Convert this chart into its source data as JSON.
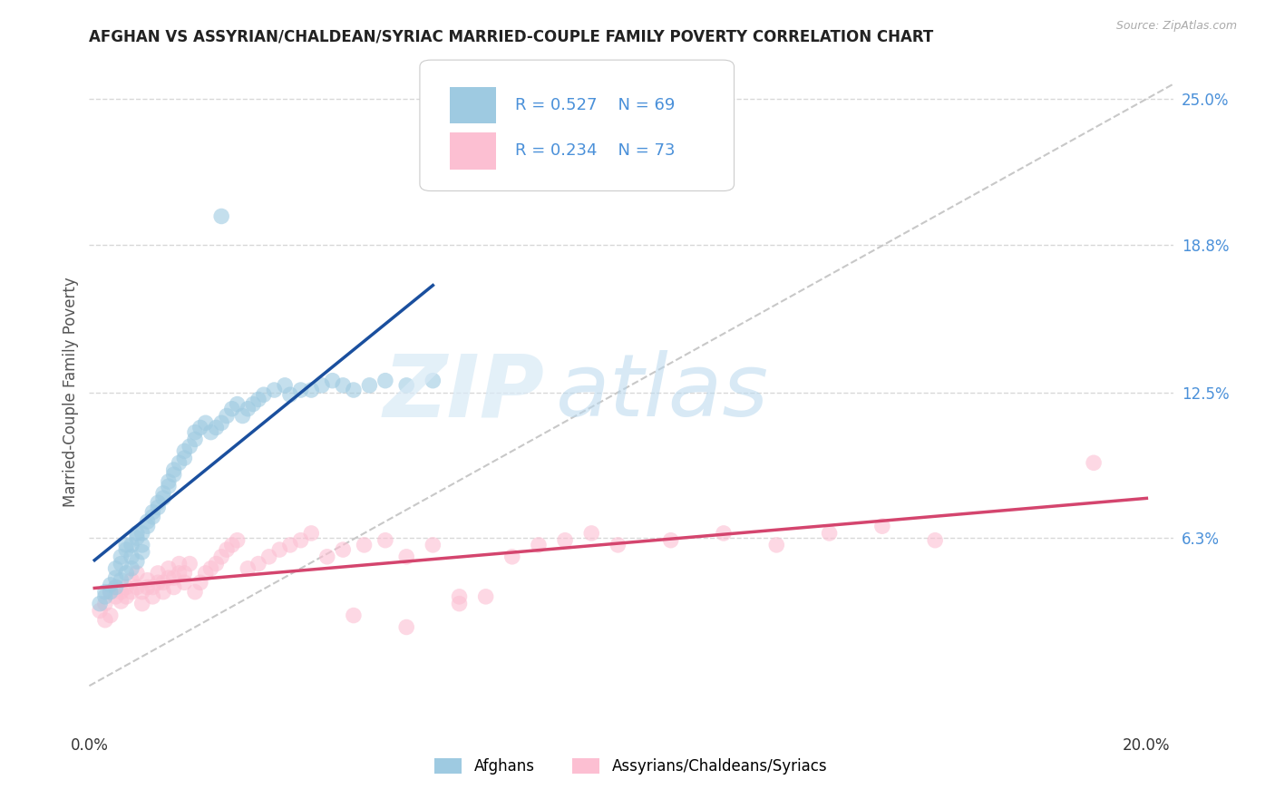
{
  "title": "AFGHAN VS ASSYRIAN/CHALDEAN/SYRIAC MARRIED-COUPLE FAMILY POVERTY CORRELATION CHART",
  "source": "Source: ZipAtlas.com",
  "ylabel": "Married-Couple Family Poverty",
  "xlim": [
    0.0,
    0.205
  ],
  "ylim": [
    -0.018,
    0.268
  ],
  "ytick_labels_right": [
    "6.3%",
    "12.5%",
    "18.8%",
    "25.0%"
  ],
  "ytick_values_right": [
    0.063,
    0.125,
    0.188,
    0.25
  ],
  "watermark_zip": "ZIP",
  "watermark_atlas": "atlas",
  "color_afghan": "#9ecae1",
  "color_assyrian": "#fcbfd2",
  "color_blue_line": "#1a4f9e",
  "color_pink_line": "#d4456e",
  "color_diag_line": "#c8c8c8",
  "color_right_labels": "#4a90d9",
  "background_color": "#ffffff",
  "grid_color": "#d8d8d8",
  "afghan_x": [
    0.003,
    0.004,
    0.005,
    0.005,
    0.006,
    0.006,
    0.007,
    0.007,
    0.008,
    0.008,
    0.009,
    0.009,
    0.01,
    0.01,
    0.011,
    0.011,
    0.012,
    0.012,
    0.013,
    0.013,
    0.014,
    0.014,
    0.015,
    0.015,
    0.016,
    0.016,
    0.017,
    0.018,
    0.018,
    0.019,
    0.02,
    0.02,
    0.021,
    0.022,
    0.023,
    0.024,
    0.025,
    0.026,
    0.027,
    0.028,
    0.029,
    0.03,
    0.031,
    0.032,
    0.033,
    0.035,
    0.037,
    0.038,
    0.04,
    0.042,
    0.044,
    0.046,
    0.048,
    0.05,
    0.053,
    0.056,
    0.06,
    0.065,
    0.025,
    0.002,
    0.003,
    0.004,
    0.005,
    0.006,
    0.007,
    0.008,
    0.009,
    0.01
  ],
  "afghan_y": [
    0.04,
    0.043,
    0.046,
    0.05,
    0.052,
    0.055,
    0.058,
    0.06,
    0.055,
    0.06,
    0.063,
    0.065,
    0.06,
    0.065,
    0.068,
    0.07,
    0.072,
    0.074,
    0.076,
    0.078,
    0.08,
    0.082,
    0.085,
    0.087,
    0.09,
    0.092,
    0.095,
    0.097,
    0.1,
    0.102,
    0.105,
    0.108,
    0.11,
    0.112,
    0.108,
    0.11,
    0.112,
    0.115,
    0.118,
    0.12,
    0.115,
    0.118,
    0.12,
    0.122,
    0.124,
    0.126,
    0.128,
    0.124,
    0.126,
    0.126,
    0.128,
    0.13,
    0.128,
    0.126,
    0.128,
    0.13,
    0.128,
    0.13,
    0.2,
    0.035,
    0.038,
    0.04,
    0.042,
    0.045,
    0.048,
    0.05,
    0.053,
    0.057
  ],
  "assyrian_x": [
    0.002,
    0.003,
    0.003,
    0.004,
    0.004,
    0.005,
    0.005,
    0.006,
    0.006,
    0.007,
    0.007,
    0.008,
    0.008,
    0.009,
    0.009,
    0.01,
    0.01,
    0.011,
    0.011,
    0.012,
    0.012,
    0.013,
    0.013,
    0.014,
    0.014,
    0.015,
    0.015,
    0.016,
    0.016,
    0.017,
    0.017,
    0.018,
    0.018,
    0.019,
    0.02,
    0.021,
    0.022,
    0.023,
    0.024,
    0.025,
    0.026,
    0.027,
    0.028,
    0.03,
    0.032,
    0.034,
    0.036,
    0.038,
    0.04,
    0.042,
    0.045,
    0.048,
    0.052,
    0.056,
    0.06,
    0.065,
    0.07,
    0.075,
    0.08,
    0.085,
    0.09,
    0.095,
    0.1,
    0.11,
    0.12,
    0.13,
    0.14,
    0.15,
    0.16,
    0.19,
    0.05,
    0.06,
    0.07
  ],
  "assyrian_y": [
    0.032,
    0.028,
    0.035,
    0.03,
    0.04,
    0.038,
    0.042,
    0.036,
    0.04,
    0.038,
    0.042,
    0.04,
    0.045,
    0.042,
    0.048,
    0.035,
    0.04,
    0.042,
    0.045,
    0.038,
    0.042,
    0.044,
    0.048,
    0.04,
    0.044,
    0.046,
    0.05,
    0.042,
    0.046,
    0.048,
    0.052,
    0.044,
    0.048,
    0.052,
    0.04,
    0.044,
    0.048,
    0.05,
    0.052,
    0.055,
    0.058,
    0.06,
    0.062,
    0.05,
    0.052,
    0.055,
    0.058,
    0.06,
    0.062,
    0.065,
    0.055,
    0.058,
    0.06,
    0.062,
    0.055,
    0.06,
    0.035,
    0.038,
    0.055,
    0.06,
    0.062,
    0.065,
    0.06,
    0.062,
    0.065,
    0.06,
    0.065,
    0.068,
    0.062,
    0.095,
    0.03,
    0.025,
    0.038
  ]
}
